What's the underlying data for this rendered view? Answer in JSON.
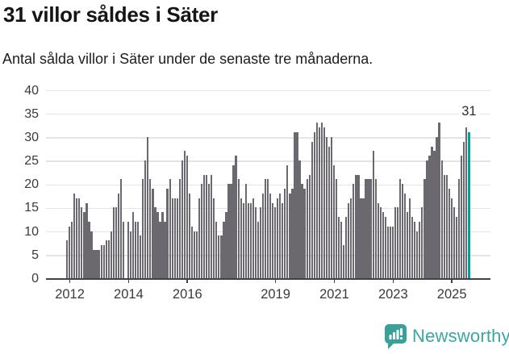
{
  "header": {
    "title": "31 villor såldes i Säter",
    "subtitle": "Antal sålda villor i Säter under de senaste tre månaderna."
  },
  "chart_data": {
    "type": "bar",
    "title": "31 villor såldes i Säter",
    "subtitle": "Antal sålda villor i Säter under de senaste tre månaderna.",
    "frequency": "monthly",
    "x_start": "2011-12",
    "x_end": "2025-08",
    "ylim": [
      0,
      40
    ],
    "yticks": [
      0,
      5,
      10,
      15,
      20,
      25,
      30,
      35,
      40
    ],
    "xticks": [
      {
        "label": "2012",
        "year": 2012
      },
      {
        "label": "2014",
        "year": 2014
      },
      {
        "label": "2016",
        "year": 2016
      },
      {
        "label": "2019",
        "year": 2019
      },
      {
        "label": "2021",
        "year": 2021
      },
      {
        "label": "2023",
        "year": 2023
      },
      {
        "label": "2025",
        "year": 2025
      }
    ],
    "grid": true,
    "bar_color": "#6b6870",
    "highlight_color": "#00a09b",
    "values": [
      8,
      11,
      12,
      18,
      17,
      17,
      15,
      14,
      16,
      12,
      10,
      6,
      6,
      6,
      7,
      7,
      8,
      8,
      10,
      15,
      15,
      18,
      21,
      12,
      0,
      12,
      10,
      14,
      12,
      12,
      9,
      21,
      25,
      30,
      21,
      19,
      15,
      14,
      12,
      14,
      12,
      19,
      21,
      17,
      17,
      17,
      21,
      25,
      27,
      26,
      18,
      11,
      10,
      10,
      17,
      20,
      22,
      22,
      20,
      22,
      17,
      12,
      9,
      9,
      12,
      14,
      20,
      20,
      24,
      26,
      21,
      17,
      16,
      20,
      16,
      16,
      17,
      15,
      12,
      15,
      18,
      21,
      21,
      18,
      16,
      15,
      17,
      18,
      16,
      19,
      24,
      18,
      19,
      31,
      31,
      25,
      20,
      19,
      21,
      22,
      29,
      31,
      33,
      32,
      33,
      32,
      30,
      28,
      30,
      24,
      21,
      13,
      12,
      7,
      13,
      16,
      17,
      20,
      22,
      22,
      17,
      17,
      21,
      21,
      21,
      27,
      21,
      16,
      15,
      14,
      13,
      11,
      11,
      11,
      15,
      15,
      21,
      20,
      18,
      14,
      17,
      13,
      12,
      10,
      12,
      15,
      21,
      25,
      26,
      28,
      27,
      30,
      33,
      25,
      22,
      22,
      19,
      17,
      15,
      13,
      21,
      26,
      29,
      32,
      31
    ],
    "highlight": {
      "index": 164,
      "value": 31,
      "label": "31"
    }
  },
  "annotation": {
    "last_value_label": "31"
  },
  "footer": {
    "brand": "Newsworthy",
    "brand_color": "#3aa6a0",
    "logo_icon": "bar-chart-speech-bubble-icon"
  }
}
